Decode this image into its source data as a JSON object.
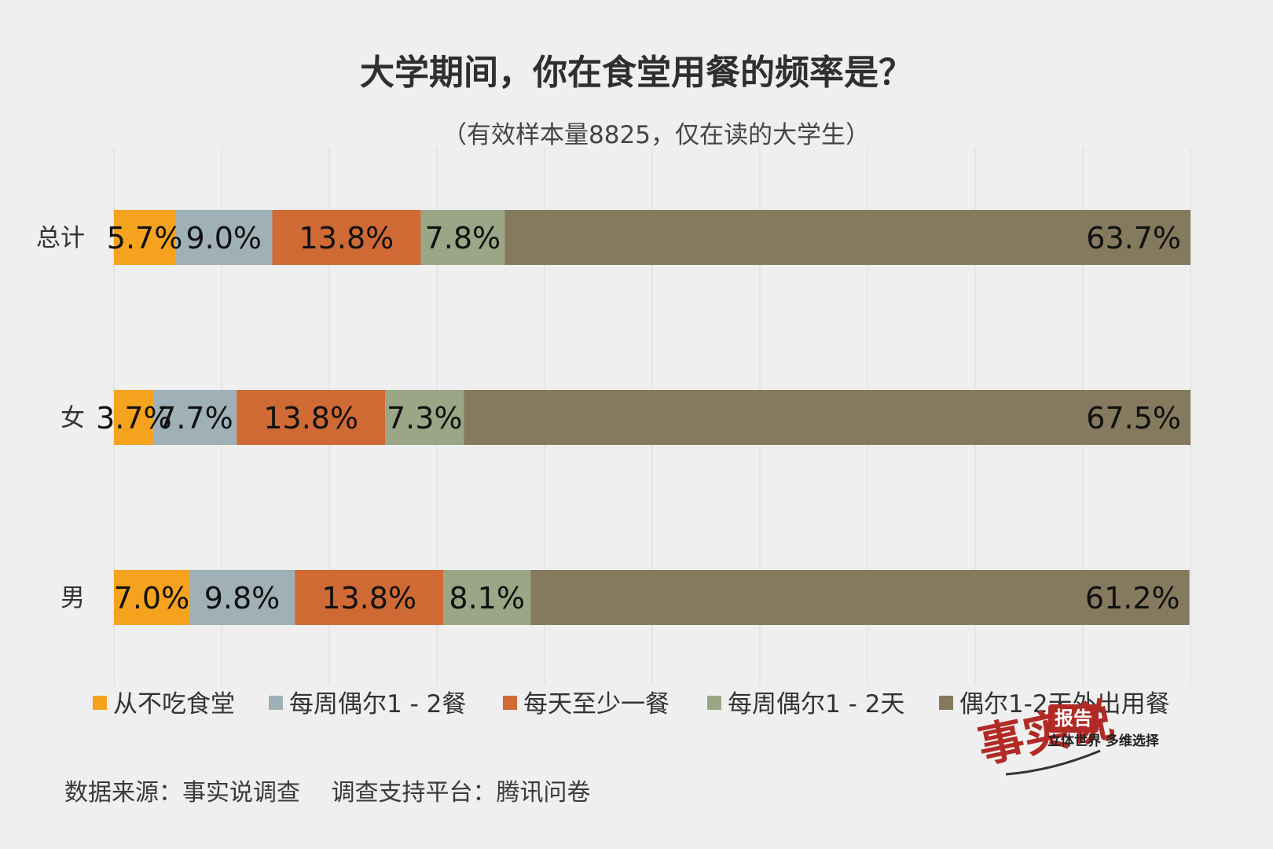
{
  "title": "大学期间，你在食堂用餐的频率是？",
  "subtitle": "（有效样本量8825，仅在读的大学生）",
  "source": "数据来源：事实说调查　 调查支持平台：腾讯问卷",
  "logo": {
    "text_main": "事实说",
    "text_badge": "报告",
    "tagline": "立体世界 多维选择"
  },
  "colors": {
    "background": "#efefef",
    "series": [
      "#f5a21f",
      "#9fb0b6",
      "#cf6a35",
      "#9aa686",
      "#857a5e"
    ]
  },
  "chart_data": {
    "type": "bar",
    "orientation": "horizontal",
    "stacked": true,
    "percent_stacked": true,
    "title": "大学期间，你在食堂用餐的频率是？",
    "subtitle": "（有效样本量8825，仅在读的大学生）",
    "categories": [
      "总计",
      "女",
      "男"
    ],
    "series": [
      {
        "name": "从不吃食堂",
        "values": [
          5.7,
          3.7,
          7.0
        ],
        "labels": [
          "5.7%",
          "3.7%",
          "7.0%"
        ]
      },
      {
        "name": "每周偶尔1 - 2餐",
        "values": [
          9.0,
          7.7,
          9.8
        ],
        "labels": [
          "9.0%",
          "7.7%",
          "9.8%"
        ]
      },
      {
        "name": "每天至少一餐",
        "values": [
          13.8,
          13.8,
          13.8
        ],
        "labels": [
          "13.8%",
          "13.8%",
          "13.8%"
        ]
      },
      {
        "name": "每周偶尔1 - 2天",
        "values": [
          7.8,
          7.3,
          8.1
        ],
        "labels": [
          "7.8%",
          "7.3%",
          "8.1%"
        ]
      },
      {
        "name": "偶尔1-2天外出用餐",
        "values": [
          63.7,
          67.5,
          61.2
        ],
        "labels": [
          "63.7%",
          "67.5%",
          "61.2%"
        ]
      }
    ],
    "xlim": [
      0,
      100
    ],
    "grid": true,
    "legend": "bottom"
  }
}
